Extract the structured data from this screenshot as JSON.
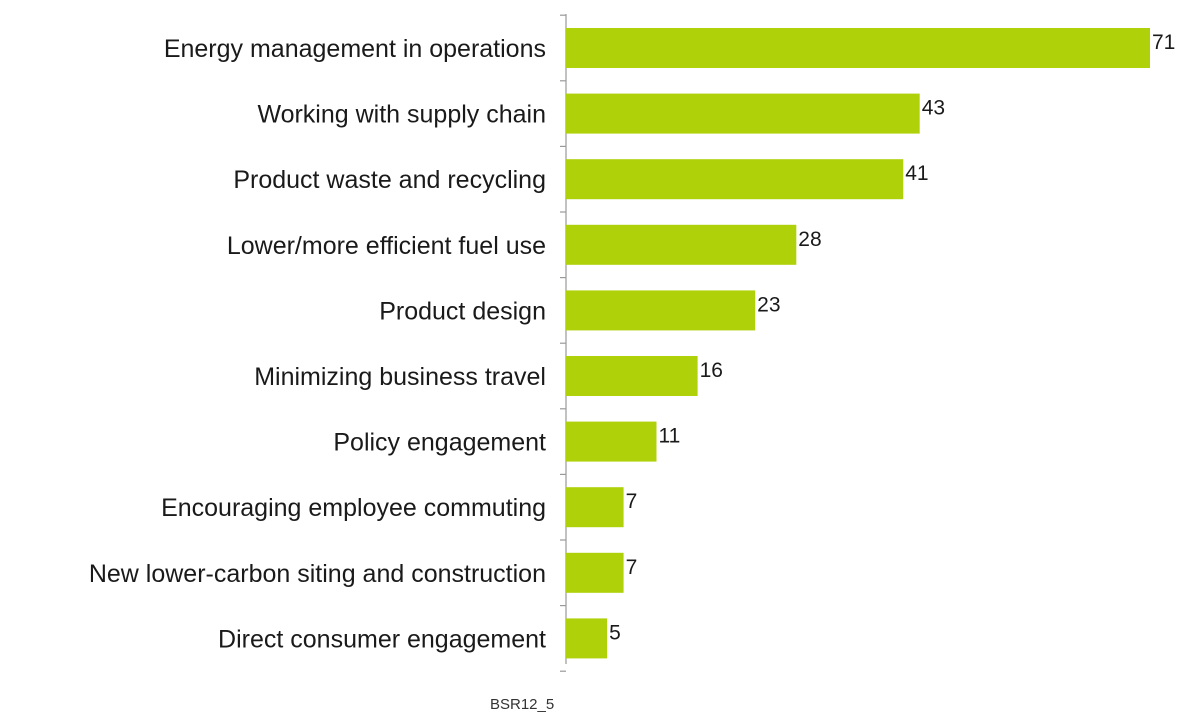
{
  "chart_data": {
    "type": "bar",
    "orientation": "horizontal",
    "categories": [
      "Energy management in operations",
      "Working with supply chain",
      "Product waste and recycling",
      "Lower/more efficient fuel use",
      "Product design",
      "Minimizing business travel",
      "Policy engagement",
      "Encouraging employee commuting",
      "New lower-carbon siting and construction",
      "Direct consumer engagement"
    ],
    "values": [
      71,
      43,
      41,
      28,
      23,
      16,
      11,
      7,
      7,
      5
    ],
    "value_labels": [
      "71",
      "43",
      "41",
      "28",
      "23",
      "16",
      "11",
      "7",
      "7",
      "5"
    ],
    "xlim": [
      0,
      71
    ],
    "grid": false,
    "legend": "none",
    "bar_color": "#afd10a",
    "source_note": "BSR12_5"
  }
}
